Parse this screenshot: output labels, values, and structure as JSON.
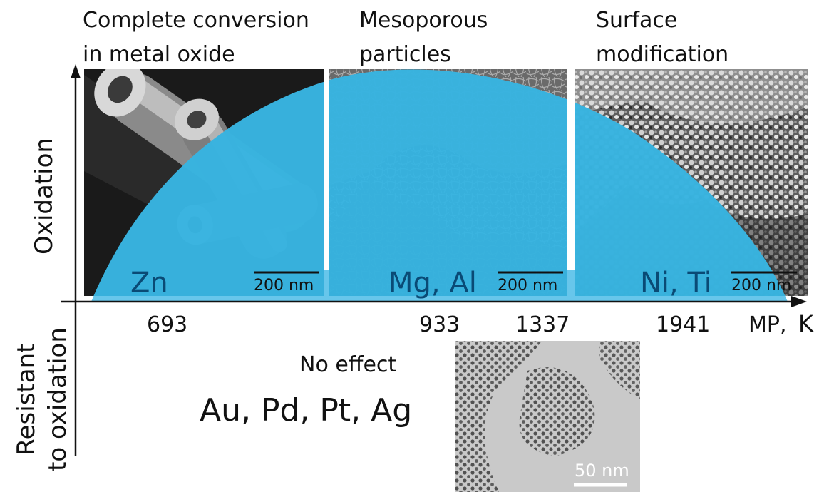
{
  "captions": {
    "left": [
      "Complete conversion",
      "in metal oxide"
    ],
    "middle": [
      "Mesoporous",
      "particles"
    ],
    "right": [
      "Surface",
      "modification"
    ]
  },
  "y_axis": {
    "upper_label": "Oxidation",
    "lower_label": [
      "Resistant",
      "to oxidation"
    ]
  },
  "x_axis": {
    "label_mp": "MP,",
    "label_unit": "K",
    "ticks": [
      "693",
      "933",
      "1337",
      "1941"
    ]
  },
  "panels": [
    {
      "metals": "Zn",
      "scale_bar": "200 nm"
    },
    {
      "metals": "Mg, Al",
      "scale_bar": "200 nm"
    },
    {
      "metals": "Ni, Ti",
      "scale_bar": "200 nm"
    }
  ],
  "no_effect": {
    "label": "No effect",
    "metals": "Au, Pd, Pt, Ag",
    "scale_bar": "50 nm"
  },
  "colors": {
    "dome_fill": "#5fc3ea",
    "dome_dark": "#0d4a66",
    "metal_text": "#0a4a75"
  }
}
